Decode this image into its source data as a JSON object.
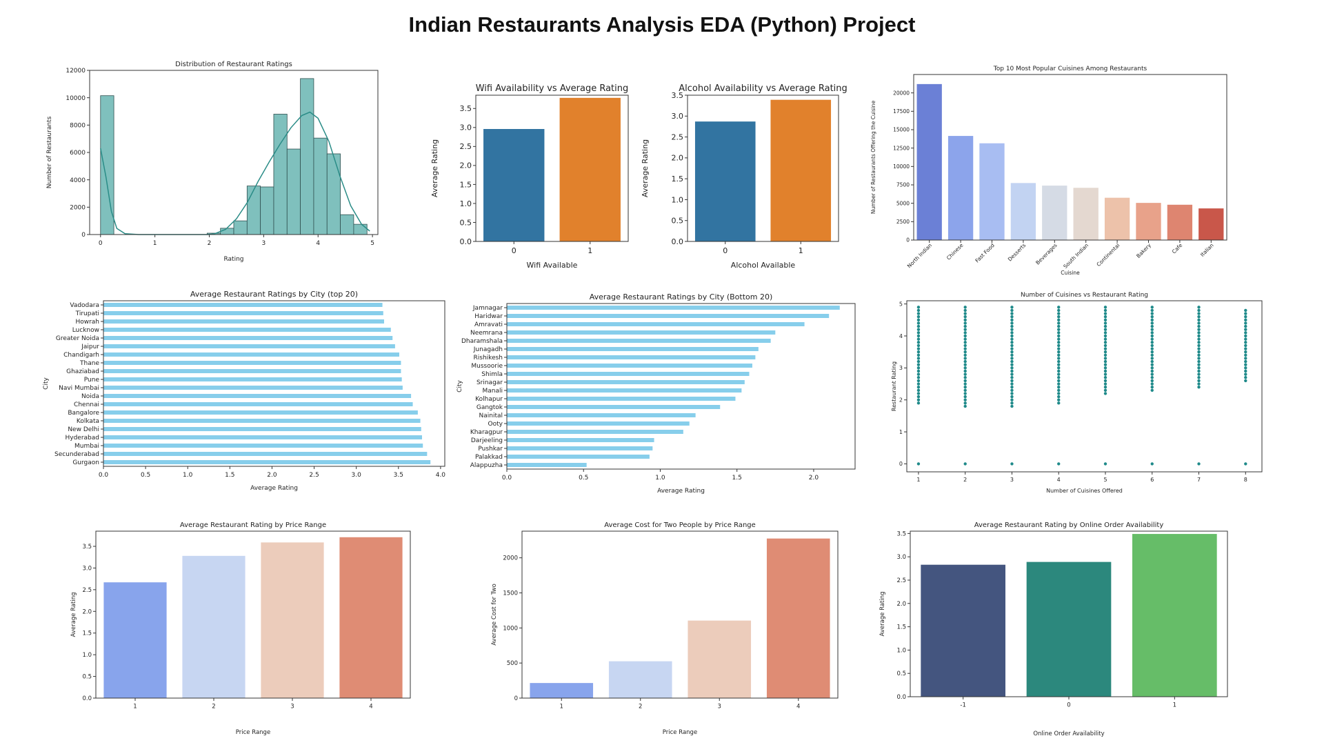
{
  "page": {
    "title": "Indian Restaurants Analysis EDA (Python) Project"
  },
  "chart_data": [
    {
      "id": "rating-dist",
      "type": "bar",
      "title": "Distribution of Restaurant Ratings",
      "xlabel": "Rating",
      "ylabel": "Number of Restaurants",
      "xlim": [
        -0.2,
        5.1
      ],
      "ylim": [
        0,
        12000
      ],
      "xticks": [
        0,
        1,
        2,
        3,
        4,
        5
      ],
      "yticks": [
        0,
        2000,
        4000,
        6000,
        8000,
        10000,
        12000
      ],
      "bin_width": 0.245,
      "bins": [
        {
          "x": 0.0,
          "v": 10150
        },
        {
          "x": 1.96,
          "v": 100
        },
        {
          "x": 2.205,
          "v": 460
        },
        {
          "x": 2.45,
          "v": 1000
        },
        {
          "x": 2.695,
          "v": 3550
        },
        {
          "x": 2.94,
          "v": 3480
        },
        {
          "x": 3.185,
          "v": 8800
        },
        {
          "x": 3.43,
          "v": 6250
        },
        {
          "x": 3.675,
          "v": 11400
        },
        {
          "x": 3.92,
          "v": 7050
        },
        {
          "x": 4.165,
          "v": 5900
        },
        {
          "x": 4.41,
          "v": 1450
        },
        {
          "x": 4.655,
          "v": 750
        }
      ],
      "kde": [
        [
          0.0,
          6300
        ],
        [
          0.1,
          4200
        ],
        [
          0.2,
          1700
        ],
        [
          0.3,
          450
        ],
        [
          0.45,
          60
        ],
        [
          0.7,
          0
        ],
        [
          2.0,
          0
        ],
        [
          2.1,
          60
        ],
        [
          2.3,
          380
        ],
        [
          2.5,
          1150
        ],
        [
          2.7,
          2350
        ],
        [
          2.9,
          3900
        ],
        [
          3.1,
          5300
        ],
        [
          3.3,
          6600
        ],
        [
          3.5,
          7800
        ],
        [
          3.7,
          8700
        ],
        [
          3.85,
          8950
        ],
        [
          4.0,
          8500
        ],
        [
          4.2,
          6800
        ],
        [
          4.4,
          4300
        ],
        [
          4.6,
          2100
        ],
        [
          4.8,
          750
        ],
        [
          4.95,
          250
        ]
      ],
      "color": "#7fc0bd",
      "line_color": "#2a8c87"
    },
    {
      "id": "wifi-rating",
      "type": "bar",
      "title": "Wifi Availability vs Average Rating",
      "xlabel": "Wifi Available",
      "ylabel": "Average Rating",
      "categories": [
        "0",
        "1"
      ],
      "values": [
        2.96,
        3.78
      ],
      "ylim": [
        0,
        3.85
      ],
      "yticks": [
        0.0,
        0.5,
        1.0,
        1.5,
        2.0,
        2.5,
        3.0,
        3.5
      ],
      "colors": [
        "#3274a1",
        "#e1812c"
      ]
    },
    {
      "id": "alcohol-rating",
      "type": "bar",
      "title": "Alcohol Availability vs Average Rating",
      "xlabel": "Alcohol Available",
      "ylabel": "Average Rating",
      "categories": [
        "0",
        "1"
      ],
      "values": [
        2.87,
        3.39
      ],
      "ylim": [
        0,
        3.5
      ],
      "yticks": [
        0.0,
        0.5,
        1.0,
        1.5,
        2.0,
        2.5,
        3.0,
        3.5
      ],
      "colors": [
        "#3274a1",
        "#e1812c"
      ]
    },
    {
      "id": "top-cuisines",
      "type": "bar",
      "title": "Top 10 Most Popular Cuisines Among Restaurants",
      "xlabel": "Cuisine",
      "ylabel": "Number of Restaurants Offering the Cuisine",
      "categories": [
        "North Indian",
        "Chinese",
        "Fast Food",
        "Desserts",
        "Beverages",
        "South Indian",
        "Continental",
        "Bakery",
        "Cafe",
        "Italian"
      ],
      "values": [
        21200,
        14150,
        13150,
        7750,
        7400,
        7100,
        5750,
        5050,
        4800,
        4300
      ],
      "ylim": [
        0,
        22500
      ],
      "yticks": [
        0,
        2500,
        5000,
        7500,
        10000,
        12500,
        15000,
        17500,
        20000
      ],
      "colors": [
        "#6b80d6",
        "#8ca4eb",
        "#a8bdf2",
        "#c2d3f2",
        "#d5dbe5",
        "#e4d8d0",
        "#edc2aa",
        "#e8a28a",
        "#de8570",
        "#c9574a"
      ]
    },
    {
      "id": "city-top20",
      "type": "bar",
      "orientation": "horizontal",
      "title": "Average Restaurant Ratings by City (top 20)",
      "xlabel": "Average Rating",
      "ylabel": "City",
      "categories": [
        "Vadodara",
        "Tirupati",
        "Howrah",
        "Lucknow",
        "Greater Noida",
        "Jaipur",
        "Chandigarh",
        "Thane",
        "Ghaziabad",
        "Pune",
        "Navi Mumbai",
        "Noida",
        "Chennai",
        "Bangalore",
        "Kolkata",
        "New Delhi",
        "Hyderabad",
        "Mumbai",
        "Secunderabad",
        "Gurgaon"
      ],
      "values": [
        3.31,
        3.32,
        3.33,
        3.41,
        3.43,
        3.46,
        3.51,
        3.53,
        3.53,
        3.54,
        3.55,
        3.65,
        3.67,
        3.73,
        3.76,
        3.77,
        3.78,
        3.79,
        3.84,
        3.88
      ],
      "xlim": [
        0,
        4.05
      ],
      "xticks": [
        0.0,
        0.5,
        1.0,
        1.5,
        2.0,
        2.5,
        3.0,
        3.5,
        4.0
      ],
      "color": "#87ceeb"
    },
    {
      "id": "city-bottom20",
      "type": "bar",
      "orientation": "horizontal",
      "title": "Average Restaurant Ratings by City (Bottom 20)",
      "xlabel": "Average Rating",
      "ylabel": "City",
      "categories": [
        "Jamnagar",
        "Haridwar",
        "Amravati",
        "Neemrana",
        "Dharamshala",
        "Junagadh",
        "Rishikesh",
        "Mussoorie",
        "Shimla",
        "Srinagar",
        "Manali",
        "Kolhapur",
        "Gangtok",
        "Nainital",
        "Ooty",
        "Kharagpur",
        "Darjeeling",
        "Pushkar",
        "Palakkad",
        "Alappuzha"
      ],
      "values": [
        2.17,
        2.1,
        1.94,
        1.75,
        1.72,
        1.64,
        1.62,
        1.6,
        1.58,
        1.55,
        1.53,
        1.49,
        1.39,
        1.23,
        1.19,
        1.15,
        0.96,
        0.95,
        0.93,
        0.52
      ],
      "xlim": [
        0,
        2.27
      ],
      "xticks": [
        0.0,
        0.5,
        1.0,
        1.5,
        2.0
      ],
      "color": "#87ceeb"
    },
    {
      "id": "cuisines-vs-rating",
      "type": "scatter",
      "title": "Number of Cuisines vs Restaurant Rating",
      "xlabel": "Number of Cuisines Offered",
      "ylabel": "Restaurant Rating",
      "xlim": [
        0.75,
        8.35
      ],
      "ylim": [
        -0.25,
        5.1
      ],
      "xticks": [
        1,
        2,
        3,
        4,
        5,
        6,
        7,
        8
      ],
      "yticks": [
        0,
        1,
        2,
        3,
        4,
        5
      ],
      "series": [
        {
          "x": 1,
          "ymin": 1.9,
          "ymax": 4.9,
          "zero": true
        },
        {
          "x": 2,
          "ymin": 1.8,
          "ymax": 4.9,
          "zero": true
        },
        {
          "x": 3,
          "ymin": 1.8,
          "ymax": 4.9,
          "zero": true
        },
        {
          "x": 4,
          "ymin": 1.9,
          "ymax": 4.9,
          "zero": true
        },
        {
          "x": 5,
          "ymin": 2.2,
          "ymax": 4.9,
          "zero": true
        },
        {
          "x": 6,
          "ymin": 2.3,
          "ymax": 4.9,
          "zero": true
        },
        {
          "x": 7,
          "ymin": 2.4,
          "ymax": 4.9,
          "zero": true
        },
        {
          "x": 8,
          "ymin": 2.6,
          "ymax": 4.8,
          "zero": true
        }
      ],
      "color": "#1f8a8a"
    },
    {
      "id": "rating-by-price",
      "type": "bar",
      "title": "Average Restaurant Rating by Price Range",
      "xlabel": "Price Range",
      "ylabel": "Average Rating",
      "categories": [
        "1",
        "2",
        "3",
        "4"
      ],
      "values": [
        2.67,
        3.28,
        3.59,
        3.71
      ],
      "ylim": [
        0,
        3.85
      ],
      "yticks": [
        0.0,
        0.5,
        1.0,
        1.5,
        2.0,
        2.5,
        3.0,
        3.5
      ],
      "colors": [
        "#88a4ec",
        "#c7d6f2",
        "#ecccbb",
        "#df8c74"
      ]
    },
    {
      "id": "cost-by-price",
      "type": "bar",
      "title": "Average Cost for Two People by Price Range",
      "xlabel": "Price Range",
      "ylabel": "Average Cost for Two",
      "categories": [
        "1",
        "2",
        "3",
        "4"
      ],
      "values": [
        215,
        525,
        1105,
        2275
      ],
      "ylim": [
        0,
        2380
      ],
      "yticks": [
        0,
        500,
        1000,
        1500,
        2000
      ],
      "colors": [
        "#88a4ec",
        "#c7d6f2",
        "#ecccbb",
        "#df8c74"
      ]
    },
    {
      "id": "rating-by-online",
      "type": "bar",
      "title": "Average Restaurant Rating by Online Order Availability",
      "xlabel": "Online Order Availability",
      "ylabel": "Average Rating",
      "categories": [
        "-1",
        "0",
        "1"
      ],
      "values": [
        2.83,
        2.89,
        3.49
      ],
      "ylim": [
        0,
        3.55
      ],
      "yticks": [
        0.0,
        0.5,
        1.0,
        1.5,
        2.0,
        2.5,
        3.0,
        3.5
      ],
      "colors": [
        "#44557f",
        "#2c887d",
        "#66bd68"
      ]
    }
  ]
}
